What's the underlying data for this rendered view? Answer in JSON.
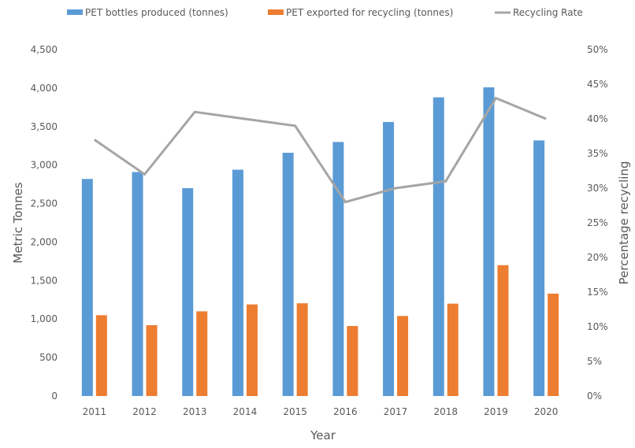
{
  "chart_data": {
    "type": "bar",
    "title": "",
    "categories": [
      "2011",
      "2012",
      "2013",
      "2014",
      "2015",
      "2016",
      "2017",
      "2018",
      "2019",
      "2020"
    ],
    "xlabel": "Year",
    "ylabel": "Metric Tonnes",
    "y2label": "Percentage recycling",
    "ylim": [
      0,
      4500
    ],
    "y2lim": [
      0,
      50
    ],
    "yticks": [
      "0",
      "500",
      "1,000",
      "1,500",
      "2,000",
      "2,500",
      "3,000",
      "3,500",
      "4,000",
      "4,500"
    ],
    "y2ticks": [
      "0%",
      "5%",
      "10%",
      "15%",
      "20%",
      "25%",
      "30%",
      "35%",
      "40%",
      "45%",
      "50%"
    ],
    "grid": false,
    "legend_position": "top",
    "series": [
      {
        "name": "PET bottles produced (tonnes)",
        "type": "bar",
        "axis": "left",
        "color": "#5B9BD5",
        "values": [
          2820,
          2910,
          2700,
          2940,
          3160,
          3300,
          3560,
          3880,
          4010,
          3320
        ]
      },
      {
        "name": "PET exported for recycling (tonnes)",
        "type": "bar",
        "axis": "left",
        "color": "#ED7D31",
        "values": [
          1050,
          920,
          1100,
          1190,
          1205,
          910,
          1040,
          1200,
          1700,
          1330
        ]
      },
      {
        "name": "Recycling Rate",
        "type": "line",
        "axis": "right",
        "color": "#A5A5A5",
        "values": [
          37,
          32,
          41,
          40,
          39,
          28,
          30,
          31,
          43,
          40
        ]
      }
    ]
  }
}
